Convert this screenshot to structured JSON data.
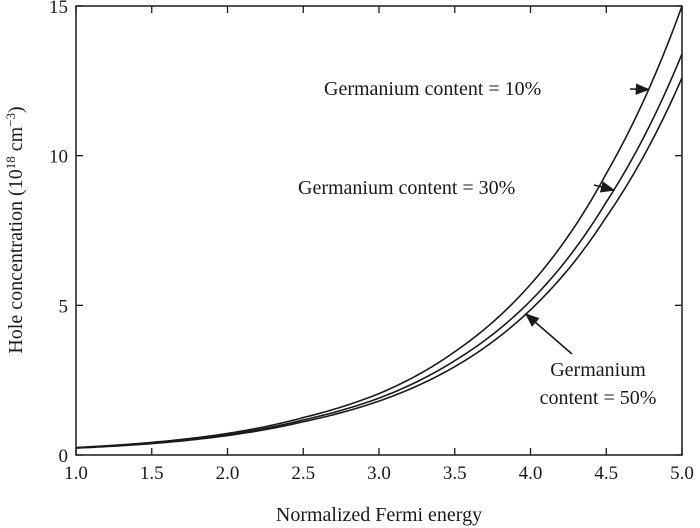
{
  "chart_data": {
    "type": "line",
    "title": "",
    "xlabel": "Normalized Fermi energy",
    "ylabel_main": "Hole concentration (10",
    "ylabel_exp1": "18",
    "ylabel_unit": " cm",
    "ylabel_exp2": "−3",
    "ylabel_close": ")",
    "xlim": [
      1.0,
      5.0
    ],
    "ylim": [
      0,
      15
    ],
    "xticks": [
      "1.0",
      "1.5",
      "2.0",
      "2.5",
      "3.0",
      "3.5",
      "4.0",
      "4.5",
      "5.0"
    ],
    "yticks": [
      "0",
      "5",
      "10",
      "15"
    ],
    "grid": false,
    "x": [
      1.0,
      1.5,
      2.0,
      2.5,
      3.0,
      3.5,
      4.0,
      4.5,
      5.0
    ],
    "series": [
      {
        "values": [
          0.25,
          0.42,
          0.72,
          1.25,
          2.05,
          3.45,
          5.7,
          9.4,
          15.0
        ]
      },
      {
        "values": [
          0.24,
          0.4,
          0.68,
          1.17,
          1.9,
          3.15,
          5.15,
          8.45,
          13.4
        ]
      },
      {
        "values": [
          0.23,
          0.38,
          0.65,
          1.11,
          1.8,
          2.95,
          4.85,
          7.95,
          12.6
        ]
      }
    ],
    "annotations": [
      {
        "text": "Germanium content = 10%",
        "series": 0
      },
      {
        "text": "Germanium content = 30%",
        "series": 1
      },
      {
        "lines": [
          "Germanium",
          "content = 50%"
        ],
        "series": 2
      }
    ]
  }
}
